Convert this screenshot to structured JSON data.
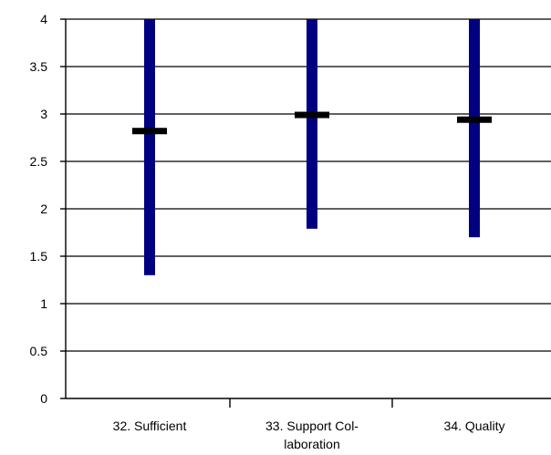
{
  "chart_data": {
    "type": "range",
    "categories": [
      "32. Sufficient",
      "33. Support Col-\nlaboration",
      "34. Quality"
    ],
    "series": [
      {
        "high": [
          4,
          4,
          4
        ],
        "low": [
          1.3,
          1.79,
          1.7
        ],
        "mean": [
          2.82,
          2.99,
          2.94
        ]
      }
    ],
    "ylim": [
      0,
      4
    ],
    "yticks": [
      "0",
      "0.5",
      "1",
      "1.5",
      "2",
      "2.5",
      "3",
      "3.5",
      "4"
    ],
    "grid": true,
    "colors": {
      "range_bar": "#000080",
      "mean_marker": "#000000",
      "grid": "#000000"
    }
  }
}
